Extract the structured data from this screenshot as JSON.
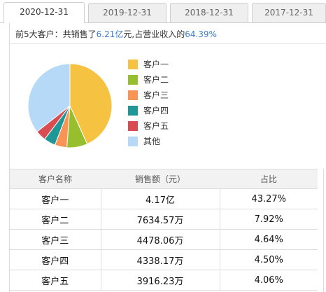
{
  "tabs": [
    {
      "label": "2020-12-31",
      "active": true
    },
    {
      "label": "2019-12-31",
      "active": false
    },
    {
      "label": "2018-12-31",
      "active": false
    },
    {
      "label": "2017-12-31",
      "active": false
    }
  ],
  "summary": {
    "prefix": "前5大客户：共销售了",
    "amount": "6.21亿",
    "middle": "元,占营业收入的",
    "ratio": "64.39%"
  },
  "chart_data": {
    "type": "pie",
    "categories": [
      "客户一",
      "客户二",
      "客户三",
      "客户四",
      "客户五",
      "其他"
    ],
    "values": [
      43.27,
      7.92,
      4.64,
      4.5,
      4.06,
      35.61
    ],
    "colors": [
      "#f5c242",
      "#96be2d",
      "#f79456",
      "#1f9797",
      "#d94d52",
      "#b6d9f7"
    ],
    "legend_position": "right"
  },
  "table": {
    "headers": [
      "客户名称",
      "销售额（元）",
      "占比"
    ],
    "rows": [
      [
        "客户一",
        "4.17亿",
        "43.27%"
      ],
      [
        "客户二",
        "7634.57万",
        "7.92%"
      ],
      [
        "客户三",
        "4478.06万",
        "4.64%"
      ],
      [
        "客户四",
        "4338.17万",
        "4.50%"
      ],
      [
        "客户五",
        "3916.23万",
        "4.06%"
      ]
    ]
  }
}
